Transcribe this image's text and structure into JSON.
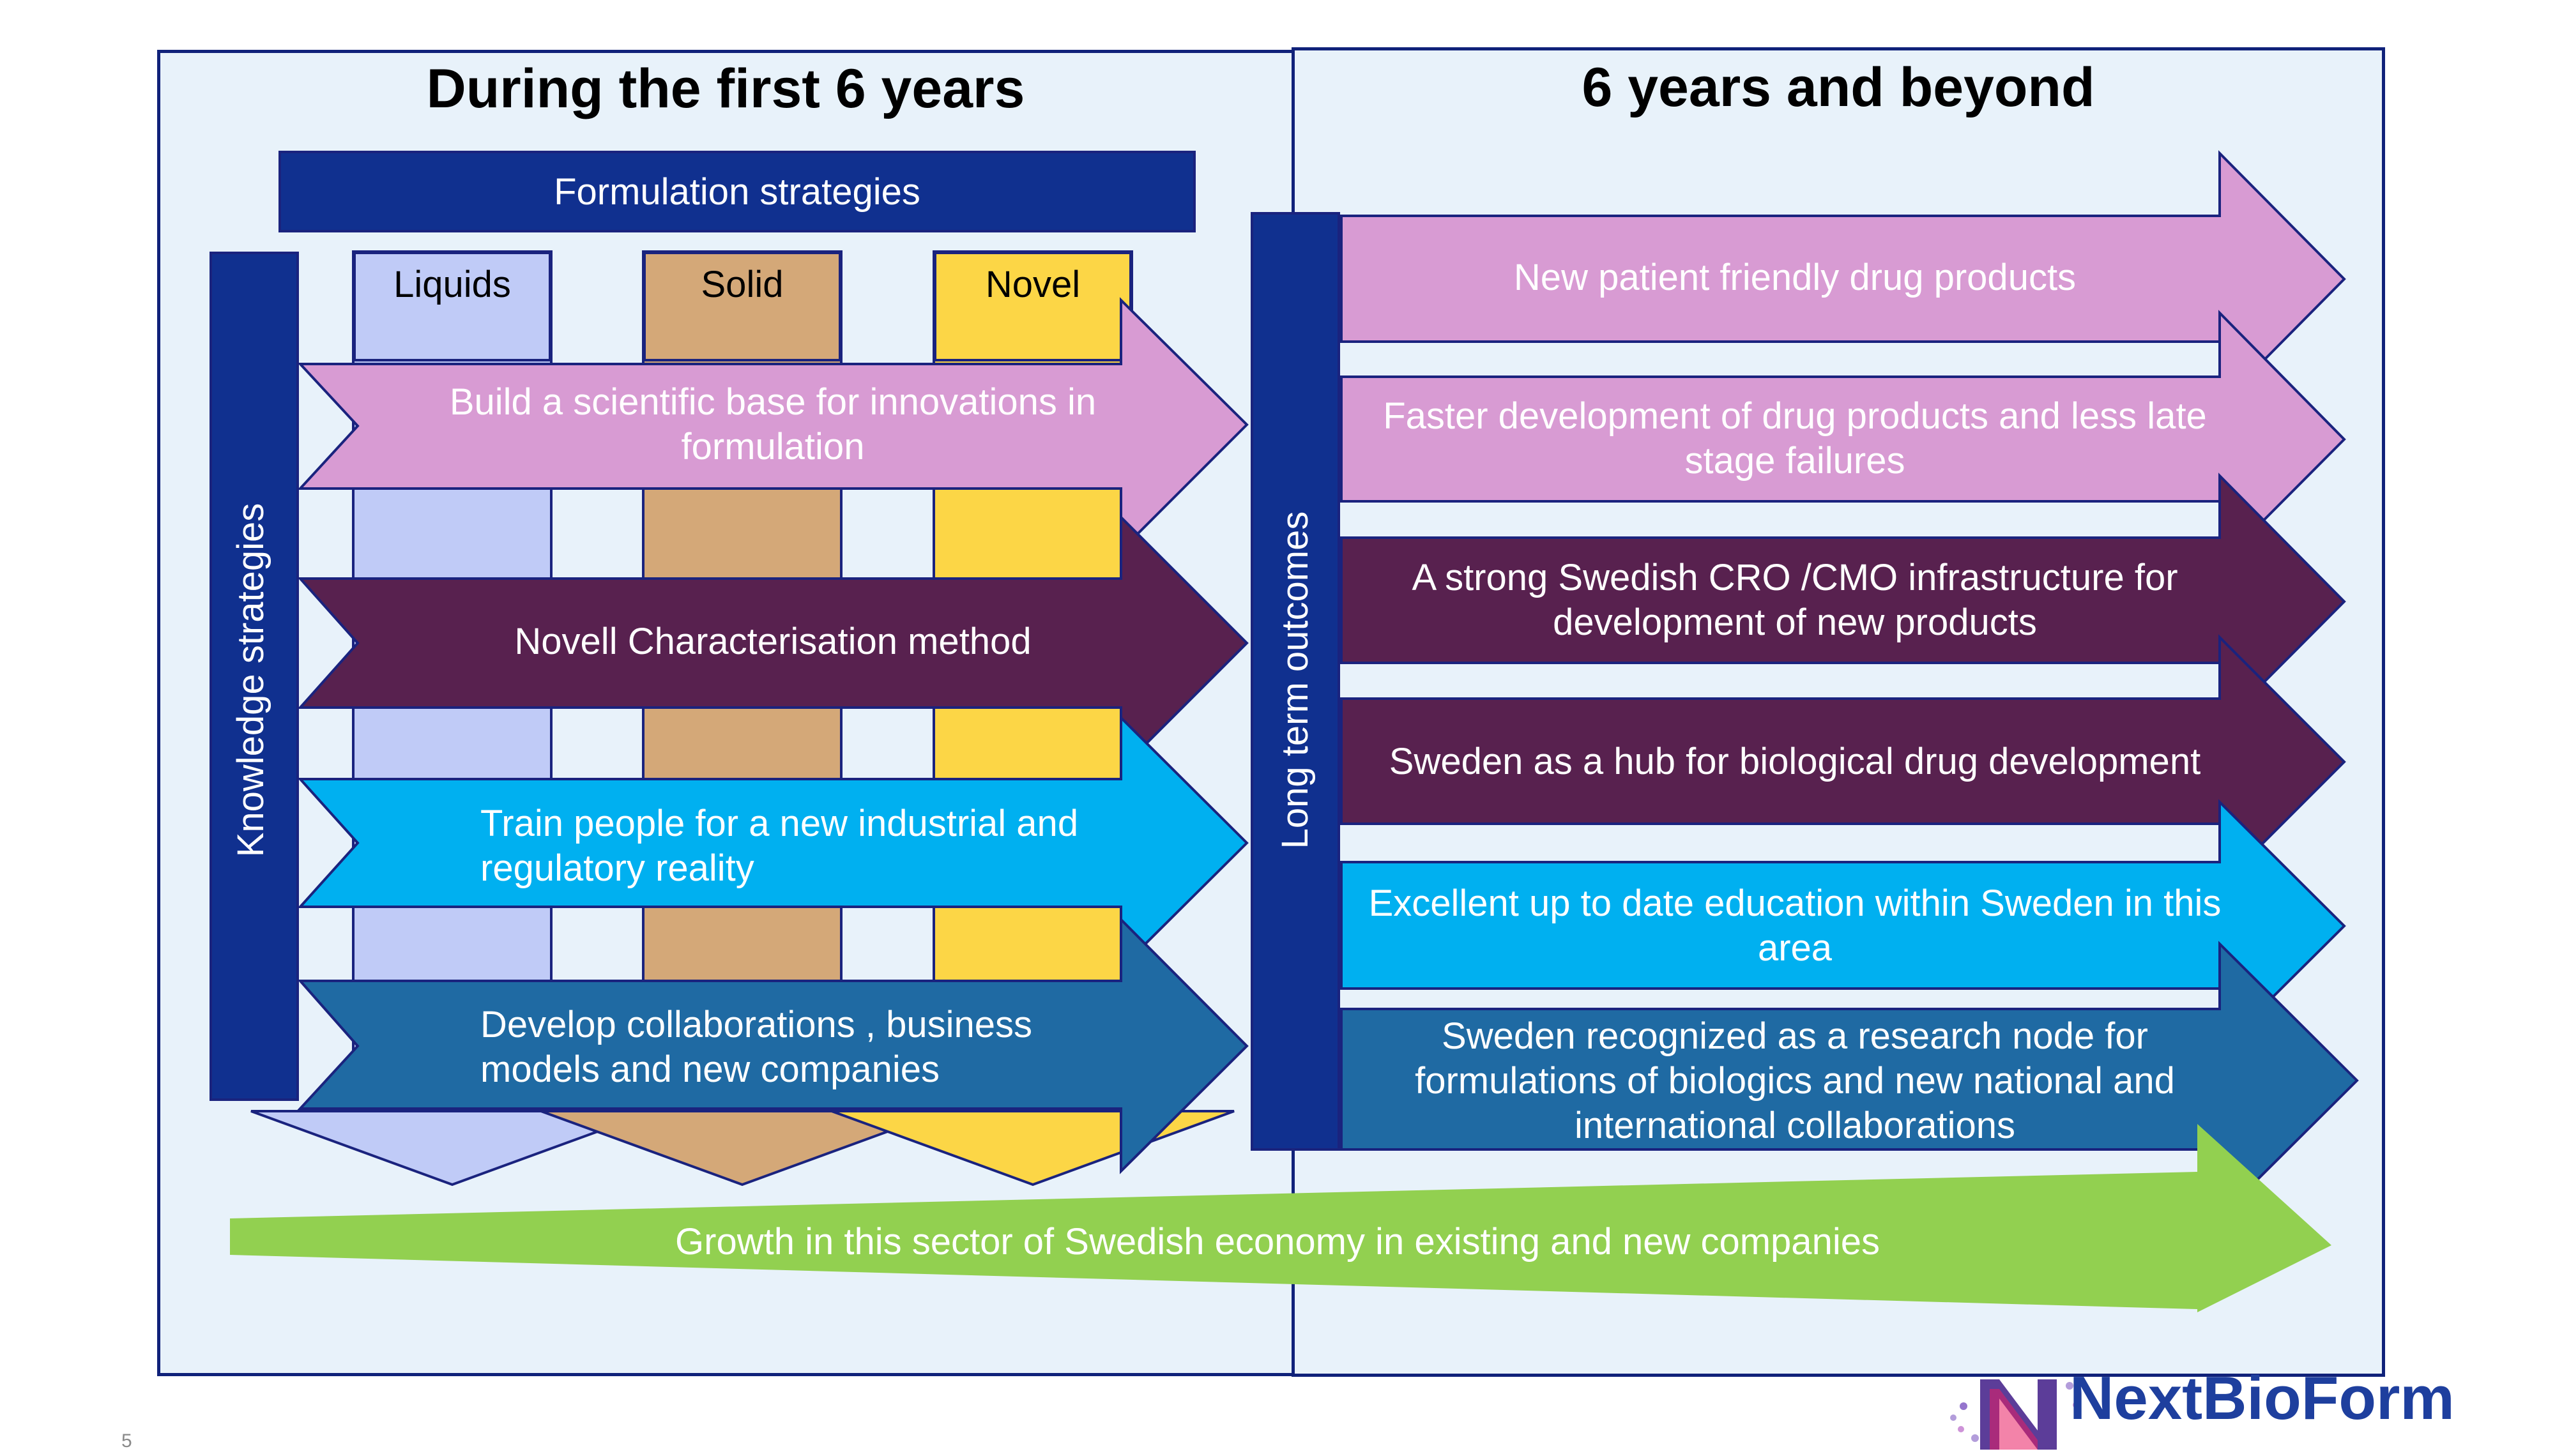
{
  "left_panel": {
    "heading": "During the first 6 years"
  },
  "right_panel": {
    "heading": "6 years and beyond"
  },
  "formulation_header": "Formulation strategies",
  "columns": [
    {
      "label": "Liquids",
      "color": "#c0cbf7"
    },
    {
      "label": "Solid",
      "color": "#d4a878"
    },
    {
      "label": "Novel",
      "color": "#fcd646"
    }
  ],
  "knowledge_label": "Knowledge strategies",
  "long_term_label": "Long term  outcomes",
  "knowledge_arrows": [
    {
      "text": "Build a scientific base for innovations in formulation",
      "color": "#d89bd3"
    },
    {
      "text": "Novell Characterisation method",
      "color": "#58214f"
    },
    {
      "text": "Train people for a new industrial and regulatory  reality",
      "color": "#00b0f0"
    },
    {
      "text": "Develop collaborations , business models and new companies",
      "color": "#1f6aa3"
    }
  ],
  "outcome_arrows": [
    {
      "text": "New patient friendly drug products",
      "color": "#d89bd3"
    },
    {
      "text": "Faster development of drug products and less late stage failures",
      "color": "#d89bd3"
    },
    {
      "text": "A strong Swedish CRO /CMO infrastructure for development of new products",
      "color": "#58214f"
    },
    {
      "text": "Sweden as a hub for biological drug development",
      "color": "#58214f"
    },
    {
      "text": "Excellent up to date education within Sweden in this area",
      "color": "#00b0f0"
    },
    {
      "text": "Sweden recognized as a research node for formulations of biologics and new national and international collaborations",
      "color": "#1f6aa3"
    }
  ],
  "growth_arrow": {
    "text": "Growth in this sector of Swedish economy in existing and new companies",
    "color": "#92d050"
  },
  "logo": {
    "text": "NextBioForm",
    "color": "#1e3f9e"
  },
  "page_number": "5",
  "colors": {
    "navy": "#10227a",
    "panel_bg": "#e8f2fa"
  }
}
